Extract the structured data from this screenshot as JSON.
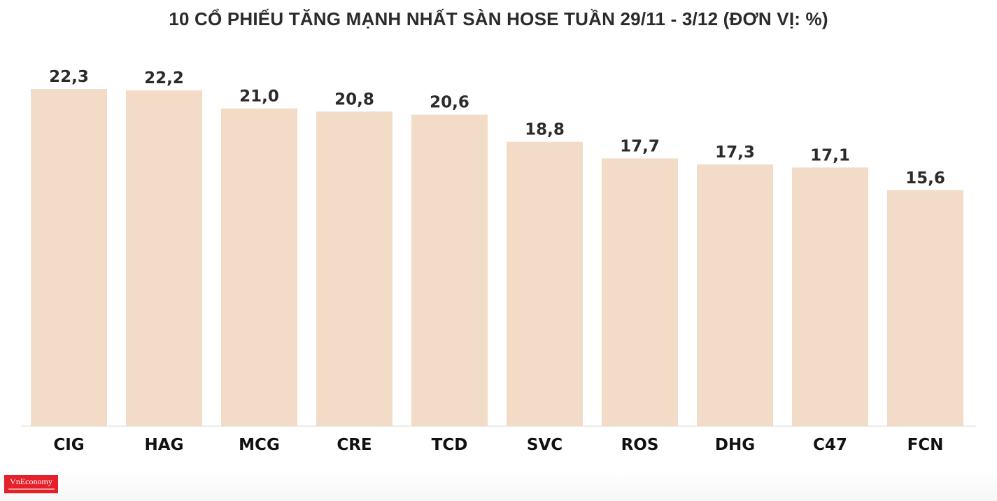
{
  "logo": {
    "text": "VnEconomy"
  },
  "chart_data": {
    "type": "bar",
    "title": "10 CỔ PHIẾU TĂNG MẠNH NHẤT SÀN HOSE TUẦN 29/11 - 3/12 (ĐƠN VỊ: %)",
    "xlabel": "",
    "ylabel": "",
    "categories": [
      "CIG",
      "HAG",
      "MCG",
      "CRE",
      "TCD",
      "SVC",
      "ROS",
      "DHG",
      "C47",
      "FCN"
    ],
    "values": [
      22.3,
      22.2,
      21.0,
      20.8,
      20.6,
      18.8,
      17.7,
      17.3,
      17.1,
      15.6
    ],
    "value_labels": [
      "22,3",
      "22,2",
      "21,0",
      "20,8",
      "20,6",
      "18,8",
      "17,7",
      "17,3",
      "17,1",
      "15,6"
    ],
    "ylim": [
      0,
      22.3
    ],
    "grid": false,
    "legend": "none",
    "bar_color": "#f2dcc8"
  }
}
